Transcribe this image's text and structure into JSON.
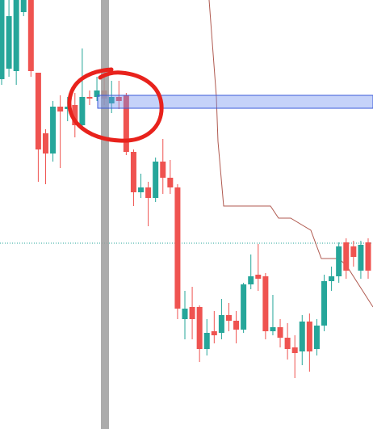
{
  "chart_data": {
    "type": "candlestick",
    "up_color": "#26a69a",
    "down_color": "#ef5350",
    "ylim": [
      0,
      531
    ],
    "open": [
      433,
      446,
      443,
      516,
      531,
      441,
      366,
      341,
      399,
      396,
      401,
      376,
      411,
      411,
      419,
      403,
      411,
      413,
      343,
      293,
      299,
      286,
      331,
      311,
      299,
      136,
      151,
      151,
      99,
      121,
      119,
      141,
      134,
      123,
      179,
      191,
      189,
      121,
      126,
      113,
      101,
      96,
      133,
      99,
      128,
      183,
      189,
      231,
      226,
      196,
      231
    ],
    "high": [
      531,
      531,
      531,
      531,
      531,
      441,
      371,
      406,
      413,
      411,
      416,
      471,
      419,
      436,
      446,
      431,
      431,
      416,
      346,
      316,
      306,
      336,
      359,
      333,
      303,
      171,
      176,
      153,
      136,
      146,
      161,
      156,
      146,
      181,
      216,
      229,
      193,
      166,
      136,
      131,
      116,
      141,
      143,
      136,
      191,
      201,
      231,
      236,
      233,
      233,
      236
    ],
    "low": [
      426,
      436,
      426,
      511,
      436,
      306,
      303,
      331,
      323,
      381,
      361,
      371,
      401,
      406,
      401,
      391,
      396,
      339,
      276,
      286,
      251,
      281,
      291,
      291,
      136,
      111,
      111,
      83,
      91,
      106,
      111,
      121,
      106,
      119,
      173,
      171,
      111,
      116,
      101,
      86,
      63,
      79,
      71,
      91,
      121,
      171,
      181,
      186,
      201,
      186,
      186
    ],
    "close": [
      531,
      511,
      531,
      531,
      443,
      346,
      341,
      399,
      393,
      399,
      376,
      411,
      409,
      419,
      409,
      411,
      406,
      343,
      293,
      299,
      286,
      331,
      311,
      299,
      149,
      149,
      136,
      99,
      119,
      116,
      141,
      134,
      123,
      179,
      189,
      186,
      121,
      126,
      113,
      99,
      94,
      133,
      96,
      128,
      183,
      189,
      226,
      196,
      213,
      228,
      196
    ]
  }
}
